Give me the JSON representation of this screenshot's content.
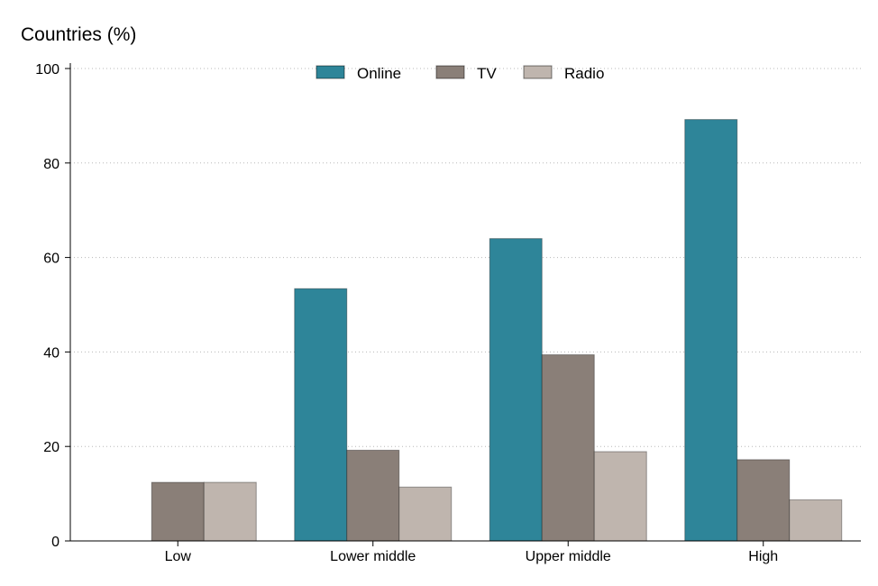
{
  "chart_data": {
    "type": "bar",
    "ylabel": "Countries (%)",
    "xlabel": "",
    "ylim": [
      0,
      100
    ],
    "yticks": [
      0,
      20,
      40,
      60,
      80,
      100
    ],
    "grid": true,
    "legend_position": "top-center",
    "categories": [
      "Low",
      "Lower middle",
      "Upper middle",
      "High"
    ],
    "series": [
      {
        "name": "Online",
        "color": "#2e8599",
        "values": [
          0,
          53.4,
          64.0,
          89.2
        ]
      },
      {
        "name": "TV",
        "color": "#8a7f78",
        "values": [
          12.4,
          19.2,
          39.4,
          17.2
        ]
      },
      {
        "name": "Radio",
        "color": "#bfb5ae",
        "values": [
          12.4,
          11.4,
          18.9,
          8.7
        ]
      }
    ]
  }
}
